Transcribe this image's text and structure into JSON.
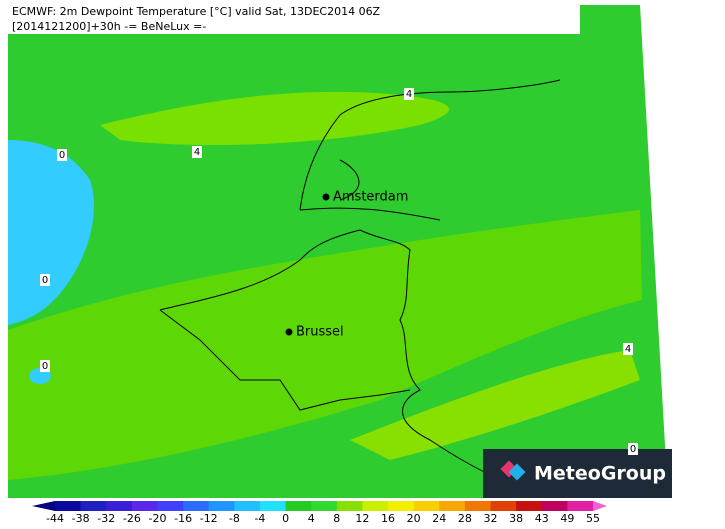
{
  "header": {
    "title": "ECMWF: 2m Dewpoint Temperature [°C] valid Sat, 13DEC2014 06Z",
    "subtitle": "[2014121200]+30h  -= BeNeLux =-"
  },
  "cities": [
    "Amsterdam",
    "Brussel"
  ],
  "contour_labels": [
    4,
    4,
    0,
    0,
    0,
    4,
    0
  ],
  "colorbar": {
    "ticks": [
      -44,
      -38,
      -32,
      -26,
      -20,
      -16,
      -12,
      -8,
      -4,
      0,
      4,
      8,
      12,
      16,
      20,
      24,
      28,
      32,
      38,
      43,
      49,
      55
    ],
    "colors": [
      "#000080",
      "#0a0aa0",
      "#2020c0",
      "#3a1ed8",
      "#5a28e8",
      "#4040ff",
      "#2a6cff",
      "#1e96ff",
      "#20c0ff",
      "#20e0ff",
      "#22cc22",
      "#33d833",
      "#88e000",
      "#c8f000",
      "#f0f000",
      "#f8d000",
      "#f8a800",
      "#f07800",
      "#e04000",
      "#c81010",
      "#c00060",
      "#e020a0",
      "#f060d0"
    ]
  },
  "logo": "MeteoGroup"
}
